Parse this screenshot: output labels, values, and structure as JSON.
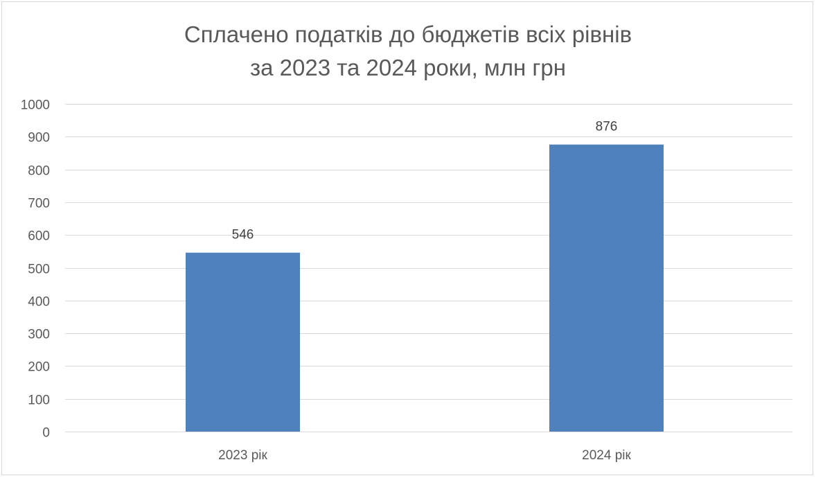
{
  "chart_data": {
    "type": "bar",
    "title": [
      "Сплачено податків до бюджетів всіх рівнів",
      "за 2023 та 2024 роки, млн грн"
    ],
    "categories": [
      "2023 рік",
      "2024 рік"
    ],
    "values": [
      546,
      876
    ],
    "data_labels": [
      "546",
      "876"
    ],
    "ylim": [
      0,
      1000
    ],
    "yticks": [
      0,
      100,
      200,
      300,
      400,
      500,
      600,
      700,
      800,
      900,
      1000
    ],
    "ytick_labels": [
      "0",
      "100",
      "200",
      "300",
      "400",
      "500",
      "600",
      "700",
      "800",
      "900",
      "1000"
    ],
    "grid": true,
    "legend": "none",
    "colors": {
      "bar": "#4f81bd",
      "grid": "#d9d9d9",
      "text": "#595959"
    }
  }
}
